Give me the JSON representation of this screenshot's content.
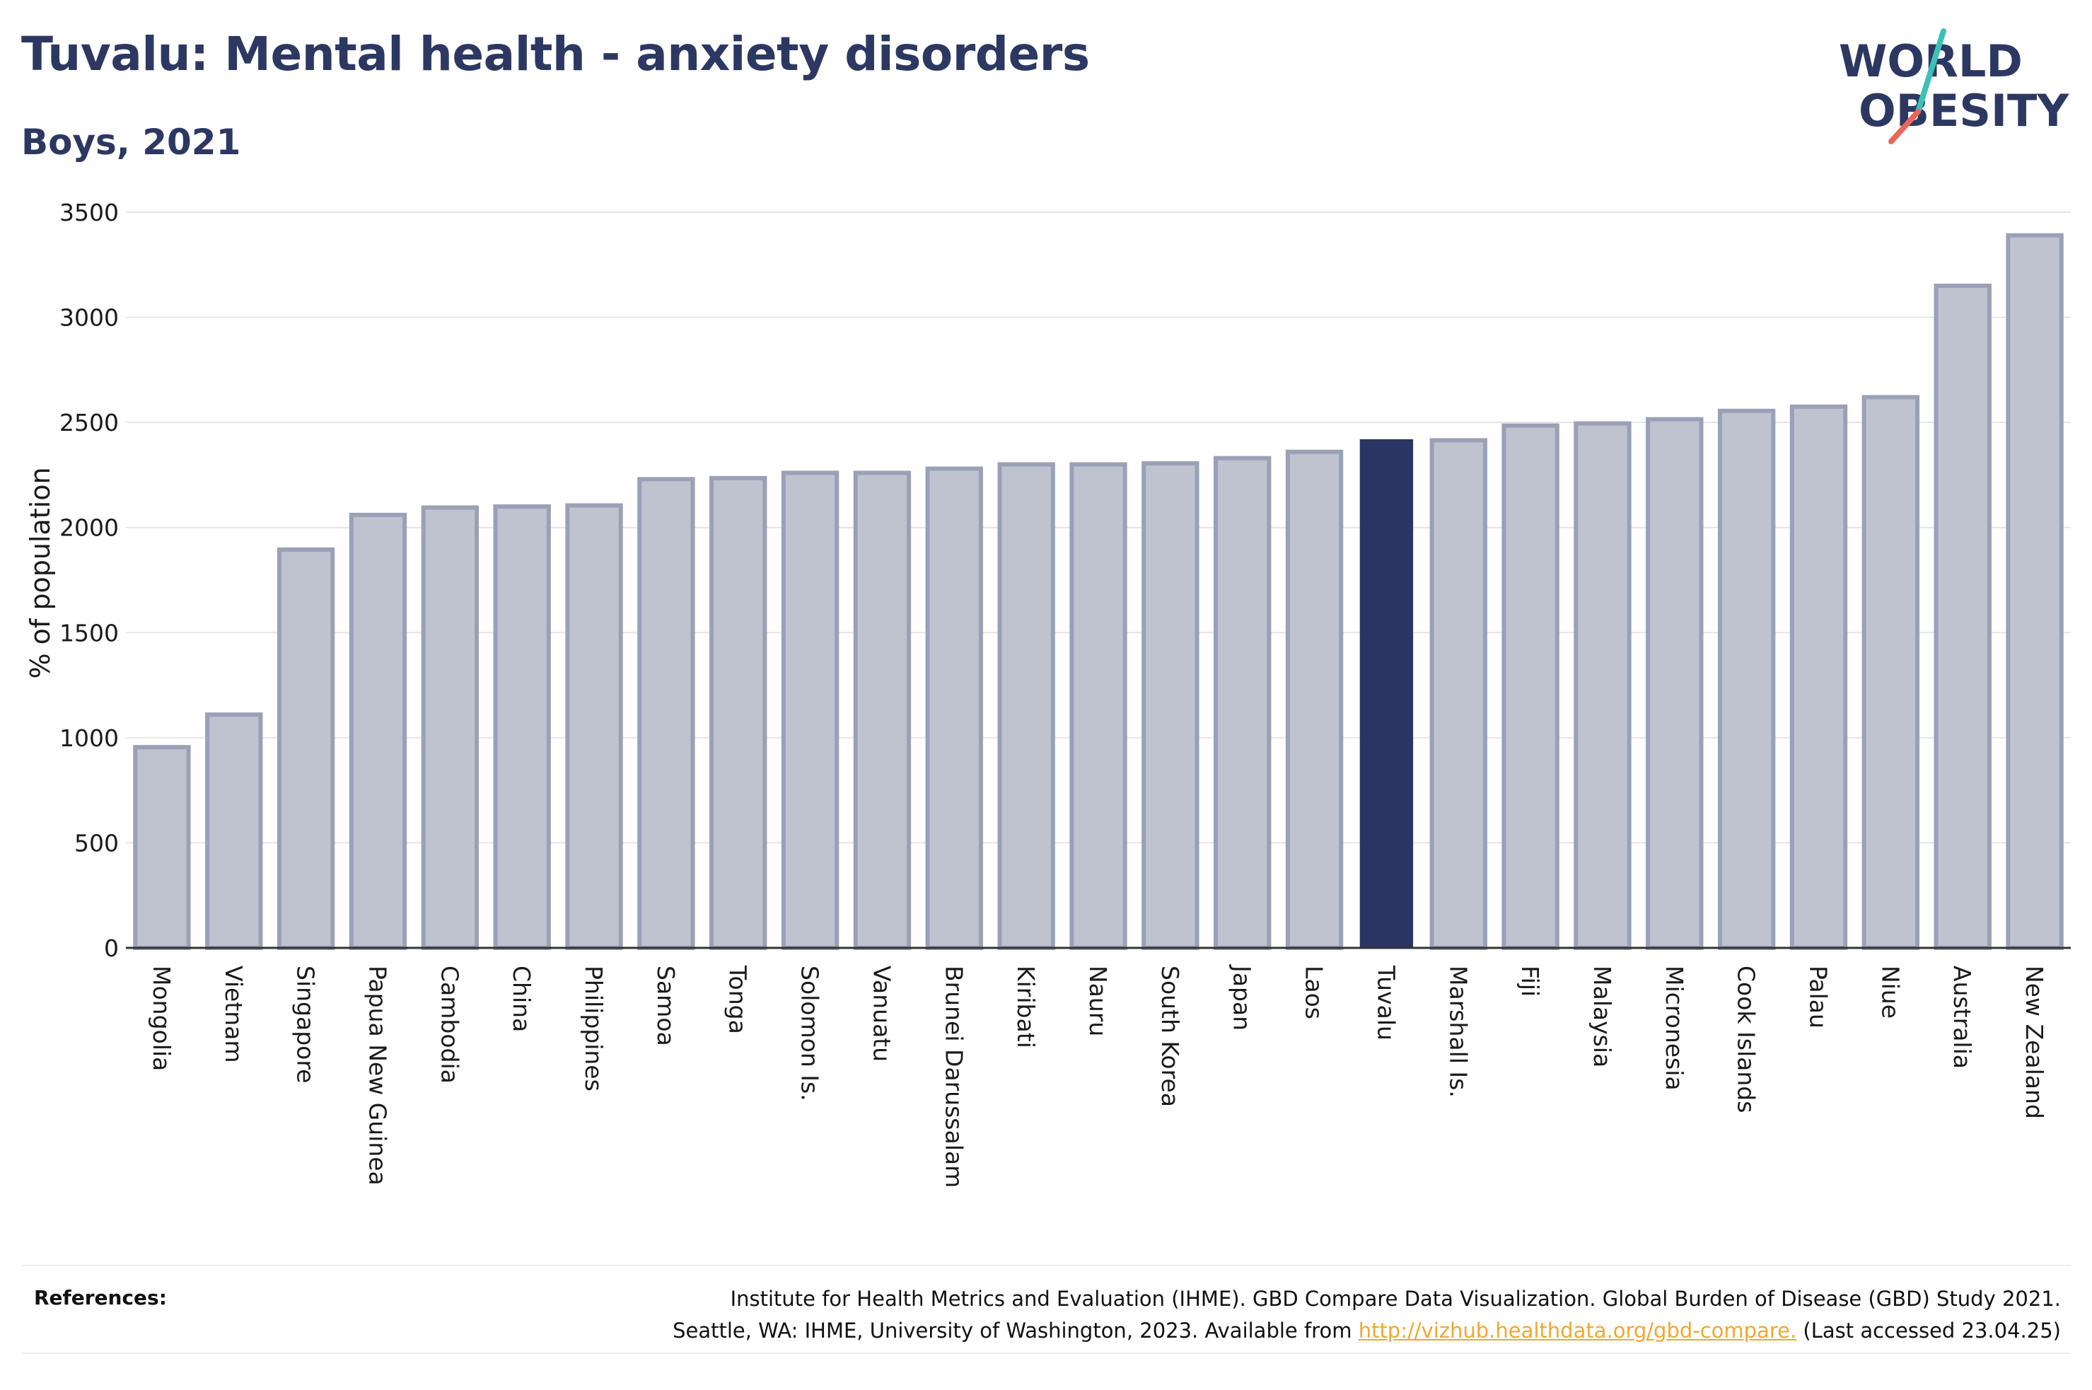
{
  "header": {
    "title": "Tuvalu: Mental health - anxiety disorders",
    "subtitle": "Boys, 2021"
  },
  "logo": {
    "line1": "WORLD",
    "line2": "OBESITY",
    "colors": {
      "text": "#2d3862",
      "slash_top": "#3cc1b7",
      "slash_bottom": "#e8665a"
    }
  },
  "colors": {
    "bar": "#bfc3d0",
    "bar_border": "#9aa0b6",
    "highlight": "#2b3563",
    "grid": "#e6e6e6",
    "axis": "#333333"
  },
  "chart_data": {
    "type": "bar",
    "title": "Tuvalu: Mental health - anxiety disorders",
    "subtitle": "Boys, 2021",
    "xlabel": "",
    "ylabel": "% of population",
    "ylim": [
      0,
      3500
    ],
    "yticks": [
      0,
      500,
      1000,
      1500,
      2000,
      2500,
      3000,
      3500
    ],
    "grid": true,
    "highlight": "Tuvalu",
    "categories": [
      "Mongolia",
      "Vietnam",
      "Singapore",
      "Papua New Guinea",
      "Cambodia",
      "China",
      "Philippines",
      "Samoa",
      "Tonga",
      "Solomon Is.",
      "Vanuatu",
      "Brunei Darussalam",
      "Kiribati",
      "Nauru",
      "South Korea",
      "Japan",
      "Laos",
      "Tuvalu",
      "Marshall Is.",
      "Fiji",
      "Malaysia",
      "Micronesia",
      "Cook Islands",
      "Palau",
      "Niue",
      "Australia",
      "New Zealand"
    ],
    "values": [
      955,
      1110,
      1895,
      2060,
      2095,
      2100,
      2105,
      2230,
      2235,
      2260,
      2260,
      2280,
      2300,
      2300,
      2305,
      2330,
      2360,
      2420,
      2415,
      2485,
      2495,
      2515,
      2555,
      2575,
      2620,
      3150,
      3390
    ]
  },
  "references": {
    "label": "References:",
    "line1": "Institute for Health Metrics and Evaluation (IHME). GBD Compare Data Visualization. Global Burden of Disease (GBD) Study 2021.",
    "line2_prefix": "Seattle, WA: IHME, University of Washington, 2023. Available from ",
    "link": "http://vizhub.healthdata.org/gbd-compare.",
    "line2_suffix": " (Last accessed 23.04.25)"
  }
}
